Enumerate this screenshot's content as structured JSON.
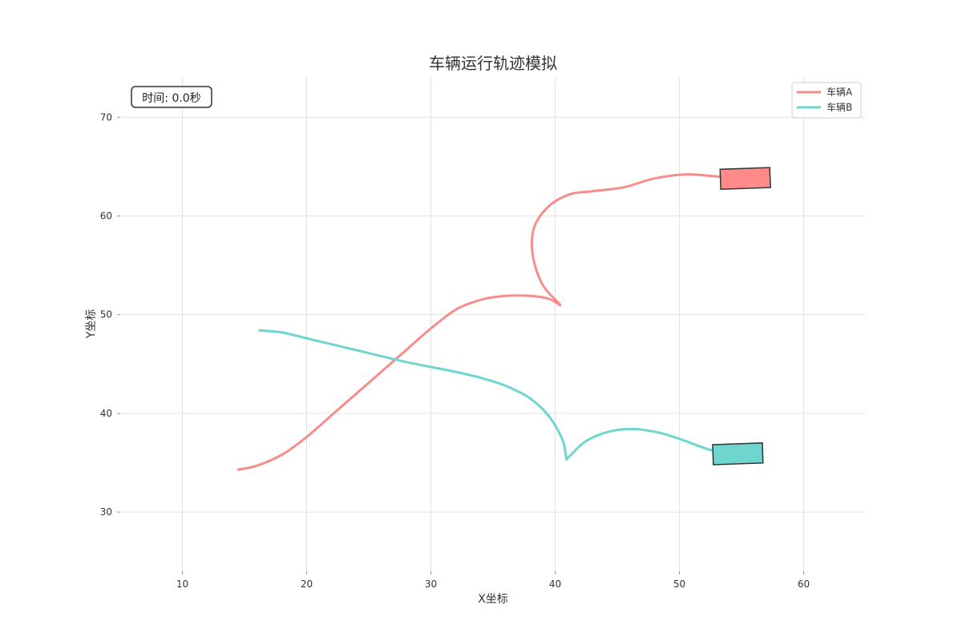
{
  "chart_data": {
    "type": "line",
    "title": "车辆运行轨迹模拟",
    "xlabel": "X坐标",
    "ylabel": "Y坐标",
    "xlim": [
      5,
      65
    ],
    "ylim": [
      24,
      74
    ],
    "xticks": [
      10,
      20,
      30,
      40,
      50,
      60
    ],
    "yticks": [
      30,
      40,
      50,
      60,
      70
    ],
    "grid": true,
    "legend_position": "top-right",
    "time_label": "时间: 0.0秒",
    "series": [
      {
        "name": "车辆A",
        "color": "#f78c8c",
        "x": [
          14.5,
          16,
          18,
          20,
          22,
          24,
          26,
          28,
          30,
          32,
          34,
          36,
          38,
          39.5,
          40.4,
          39,
          38.2,
          38.3,
          39.5,
          41.2,
          43,
          45.5,
          48,
          50.5,
          53,
          55.5
        ],
        "y": [
          34.3,
          34.7,
          35.8,
          37.6,
          39.8,
          42,
          44.2,
          46.4,
          48.6,
          50.5,
          51.5,
          51.9,
          51.9,
          51.6,
          51,
          53,
          56,
          58.8,
          61,
          62.2,
          62.5,
          62.9,
          63.8,
          64.2,
          64,
          63.7
        ]
      },
      {
        "name": "车辆B",
        "color": "#6fd6cf",
        "x": [
          16.2,
          18,
          20,
          22,
          24,
          26,
          28,
          30,
          32,
          34,
          36,
          38,
          39.5,
          40.6,
          40.9,
          41.1,
          42.5,
          44.5,
          46.5,
          48.5,
          50.5,
          52.5,
          55
        ],
        "y": [
          48.4,
          48.2,
          47.6,
          47,
          46.4,
          45.8,
          45.2,
          44.7,
          44.2,
          43.6,
          42.8,
          41.5,
          39.7,
          37.3,
          35.5,
          35.6,
          37.2,
          38.2,
          38.4,
          38,
          37.2,
          36.3,
          35.8
        ]
      }
    ],
    "vehicles": [
      {
        "name": "车辆A",
        "x": 55.3,
        "y": 63.8,
        "angle_deg": -2,
        "fill": "#ff8a8a"
      },
      {
        "name": "车辆B",
        "x": 54.7,
        "y": 35.9,
        "angle_deg": -2,
        "fill": "#6ed6cf"
      }
    ]
  }
}
